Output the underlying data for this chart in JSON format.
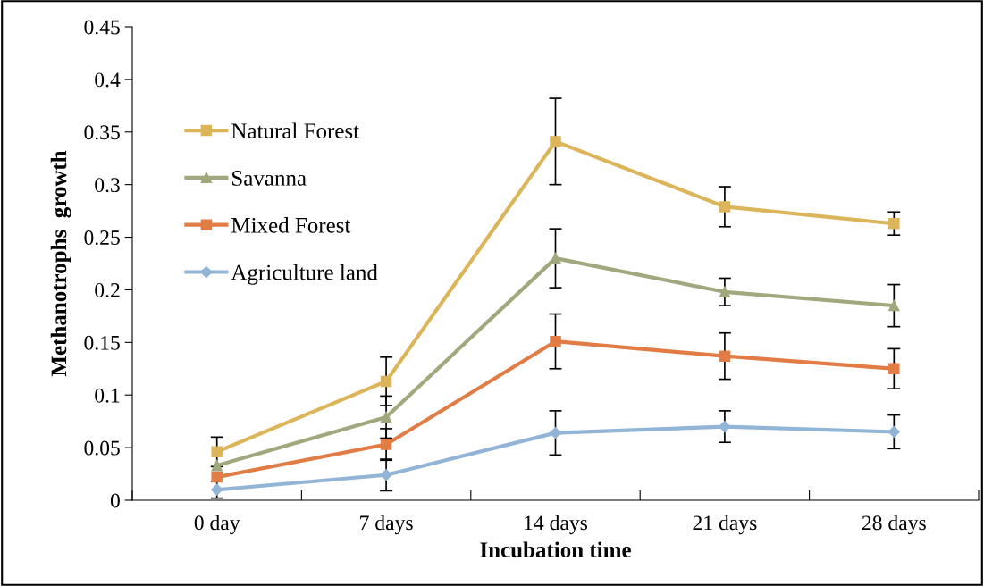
{
  "chart_data": {
    "type": "line",
    "xlabel": "Incubation time",
    "ylabel": "Methanotrophs  growth",
    "categories": [
      "0 day",
      "7 days",
      "14 days",
      "21 days",
      "28 days"
    ],
    "ylim": [
      0,
      0.45
    ],
    "yticks": [
      0,
      0.05,
      {
        "value": 0.1,
        "label": "0.1"
      },
      0.15,
      {
        "value": 0.2,
        "label": "0.2"
      },
      0.25,
      {
        "value": 0.3,
        "label": "0.3"
      },
      0.35,
      {
        "value": 0.4,
        "label": "0.4"
      },
      0.45
    ],
    "grid": false,
    "legend": "top left",
    "line_style": "solid",
    "series": [
      {
        "name": "Natural Forest",
        "color": "#dcb55a",
        "marker": "square",
        "values": [
          0.046,
          0.113,
          0.341,
          0.279,
          0.263
        ],
        "errors": [
          0.014,
          0.023,
          0.041,
          0.019,
          0.011
        ]
      },
      {
        "name": "Savanna",
        "color": "#a0a87e",
        "marker": "triangle",
        "values": [
          0.033,
          0.079,
          0.23,
          0.198,
          0.185
        ],
        "errors": [
          null,
          0.02,
          0.028,
          0.013,
          0.02
        ]
      },
      {
        "name": "Mixed Forest",
        "color": "#e27c45",
        "marker": "square",
        "values": [
          0.022,
          0.053,
          0.151,
          0.137,
          0.125
        ],
        "errors": [
          null,
          0.015,
          0.026,
          0.022,
          0.019
        ]
      },
      {
        "name": "Agriculture land",
        "color": "#92b4d6",
        "marker": "diamond",
        "values": [
          0.01,
          0.024,
          0.064,
          0.07,
          0.065
        ],
        "errors": [
          0.008,
          0.015,
          0.021,
          0.015,
          0.016
        ]
      }
    ]
  }
}
